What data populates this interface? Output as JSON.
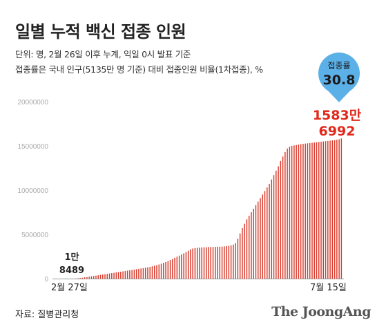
{
  "header": {
    "title": "일별 누적 백신 접종 인원",
    "note_line1": "단위: 명, 2월 26일 이후 누계, 익일 0시 발표 기준",
    "note_line2": "접종률은 국내 인구(5135만 명 기준) 대비 접종인원 비율(1차접종), %"
  },
  "callout": {
    "label": "접종률",
    "value": "30.8",
    "color": "#5bb0e8"
  },
  "first_value_label": [
    "1만",
    "8489"
  ],
  "last_value_label": [
    "1583만",
    "6992"
  ],
  "footer": {
    "source": "자료: 질병관리청",
    "brand": "The JoongAng"
  },
  "colors": {
    "bar": "#d93a2b",
    "axis": "#999999",
    "grid_text": "#aaaaaa",
    "highlight": "#e0281b"
  },
  "chart_data": {
    "type": "bar",
    "title": "일별 누적 백신 접종 인원",
    "x_start_label": "2월 27일",
    "x_end_label": "7월 15일",
    "ylim": [
      0,
      20000000
    ],
    "yticks": [
      0,
      5000000,
      10000000,
      15000000,
      20000000
    ],
    "ytick_labels": [
      "0",
      "5000000",
      "10000000",
      "15000000",
      "20000000"
    ],
    "values": [
      18489,
      40000,
      70000,
      100000,
      140000,
      180000,
      220000,
      260000,
      300000,
      340000,
      380000,
      420000,
      460000,
      500000,
      540000,
      580000,
      620000,
      660000,
      700000,
      740000,
      780000,
      820000,
      860000,
      900000,
      940000,
      980000,
      1020000,
      1060000,
      1100000,
      1140000,
      1180000,
      1230000,
      1280000,
      1330000,
      1390000,
      1450000,
      1520000,
      1600000,
      1680000,
      1780000,
      1880000,
      1980000,
      2100000,
      2220000,
      2350000,
      2480000,
      2600000,
      2720000,
      2850000,
      3000000,
      3150000,
      3300000,
      3400000,
      3450000,
      3480000,
      3500000,
      3520000,
      3540000,
      3550000,
      3560000,
      3570000,
      3580000,
      3590000,
      3600000,
      3610000,
      3620000,
      3640000,
      3670000,
      3700000,
      3750000,
      3850000,
      4000000,
      4500000,
      5100000,
      5700000,
      6200000,
      6700000,
      7100000,
      7500000,
      7900000,
      8300000,
      8700000,
      9100000,
      9500000,
      9900000,
      10300000,
      10700000,
      11200000,
      11700000,
      12200000,
      12700000,
      13300000,
      13800000,
      14300000,
      14700000,
      14900000,
      15000000,
      15050000,
      15100000,
      15150000,
      15200000,
      15230000,
      15260000,
      15290000,
      15320000,
      15350000,
      15380000,
      15410000,
      15440000,
      15470000,
      15500000,
      15530000,
      15560000,
      15590000,
      15620000,
      15650000,
      15700000,
      15750000,
      15836992
    ]
  }
}
